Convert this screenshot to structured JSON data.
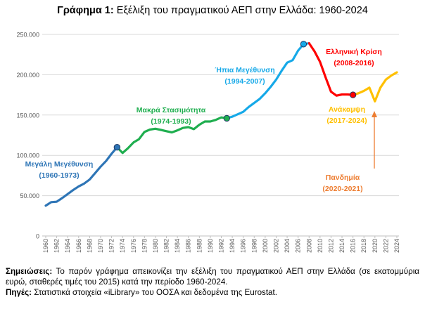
{
  "title": {
    "prefix": "Γράφημα 1:",
    "text": "Εξέλιξη του πραγματικού ΑΕΠ στην Ελλάδα: 1960-2024"
  },
  "notes": {
    "label1": "Σημειώσεις:",
    "text1": "Το παρόν γράφημα απεικονίζει την εξέλιξη του πραγματικού ΑΕΠ στην Ελλάδα (σε εκατομμύρια ευρώ, σταθερές τιμές του 2015) κατά την περίοδο 1960-2024.",
    "label2": "Πηγές:",
    "text2": "Στατιστικά στοιχεία «iLibrary» του ΟΟΣΑ και δεδομένα της Eurostat."
  },
  "colors": {
    "phase1": "#2E75B6",
    "phase2": "#1FAE4F",
    "phase3": "#16A9E8",
    "phase4": "#FF0000",
    "phase5": "#FFC000",
    "pandemic": "#ED7D31",
    "grid": "#D9D9D9",
    "axis_text": "#595959"
  },
  "chart_data": {
    "type": "line",
    "ylim": [
      0,
      250000
    ],
    "yticks": [
      0,
      50000,
      100000,
      150000,
      200000,
      250000
    ],
    "ytick_labels": [
      "0",
      "50.000",
      "100.000",
      "150.000",
      "200.000",
      "250.000"
    ],
    "xticks": [
      "1960",
      "1962",
      "1964",
      "1966",
      "1968",
      "1970",
      "1972",
      "1974",
      "1976",
      "1978",
      "1980",
      "1982",
      "1984",
      "1986",
      "1988",
      "1990",
      "1992",
      "1994",
      "1996",
      "1998",
      "2000",
      "2002",
      "2004",
      "2006",
      "2008",
      "2010",
      "2012",
      "2014",
      "2016",
      "2018",
      "2020",
      "2022",
      "2024"
    ],
    "grid": true,
    "x": [
      1960,
      1961,
      1962,
      1963,
      1964,
      1965,
      1966,
      1967,
      1968,
      1969,
      1970,
      1971,
      1972,
      1973,
      1974,
      1975,
      1976,
      1977,
      1978,
      1979,
      1980,
      1981,
      1982,
      1983,
      1984,
      1985,
      1986,
      1987,
      1988,
      1989,
      1990,
      1991,
      1992,
      1993,
      1994,
      1995,
      1996,
      1997,
      1998,
      1999,
      2000,
      2001,
      2002,
      2003,
      2004,
      2005,
      2006,
      2007,
      2008,
      2009,
      2010,
      2011,
      2012,
      2013,
      2014,
      2015,
      2016,
      2017,
      2018,
      2019,
      2020,
      2021,
      2022,
      2023,
      2024
    ],
    "values": [
      37500,
      42000,
      42500,
      47000,
      52000,
      57000,
      61500,
      65000,
      70000,
      78000,
      86000,
      93000,
      102000,
      110000,
      103000,
      109000,
      116000,
      120000,
      129000,
      132000,
      133000,
      131500,
      130000,
      128500,
      131000,
      134000,
      135000,
      132500,
      138000,
      142000,
      142000,
      144000,
      147000,
      146000,
      148000,
      151000,
      154000,
      160000,
      165000,
      170000,
      177000,
      185000,
      194000,
      205000,
      215000,
      218000,
      230000,
      238000,
      239000,
      229000,
      216000,
      197000,
      179000,
      174000,
      175500,
      175500,
      175000,
      177000,
      180000,
      184000,
      167000,
      184000,
      194000,
      199000,
      203000
    ],
    "series": [
      {
        "start": 1960,
        "end": 1973,
        "color_key": "phase1"
      },
      {
        "start": 1973,
        "end": 1993,
        "color_key": "phase2"
      },
      {
        "start": 1993,
        "end": 2008,
        "color_key": "phase3"
      },
      {
        "start": 2008,
        "end": 2016,
        "color_key": "phase4"
      },
      {
        "start": 2016,
        "end": 2024,
        "color_key": "phase5"
      }
    ],
    "markers": [
      {
        "x": 1973,
        "color_key": "phase1"
      },
      {
        "x": 1993,
        "color_key": "phase2"
      },
      {
        "x": 2007,
        "color_key": "phase3"
      },
      {
        "x": 2016,
        "color_key": "phase4"
      }
    ],
    "annotations": [
      {
        "line1": "Μεγάλη Μεγέθυνση",
        "line2": "(1960-1973)",
        "color_key": "phase1"
      },
      {
        "line1": "Μακρά Στασιμότητα",
        "line2": "(1974-1993)",
        "color_key": "phase2"
      },
      {
        "line1": "Ήπια Μεγέθυνση",
        "line2": "(1994-2007)",
        "color_key": "phase3"
      },
      {
        "line1": "Ελληνική Κρίση",
        "line2": "(2008-2016)",
        "color_key": "phase4"
      },
      {
        "line1": "Ανάκαμψη",
        "line2": "(2017-2024)",
        "color_key": "phase5"
      },
      {
        "line1": "Πανδημία",
        "line2": "(2020-2021)",
        "color_key": "pandemic"
      }
    ]
  }
}
